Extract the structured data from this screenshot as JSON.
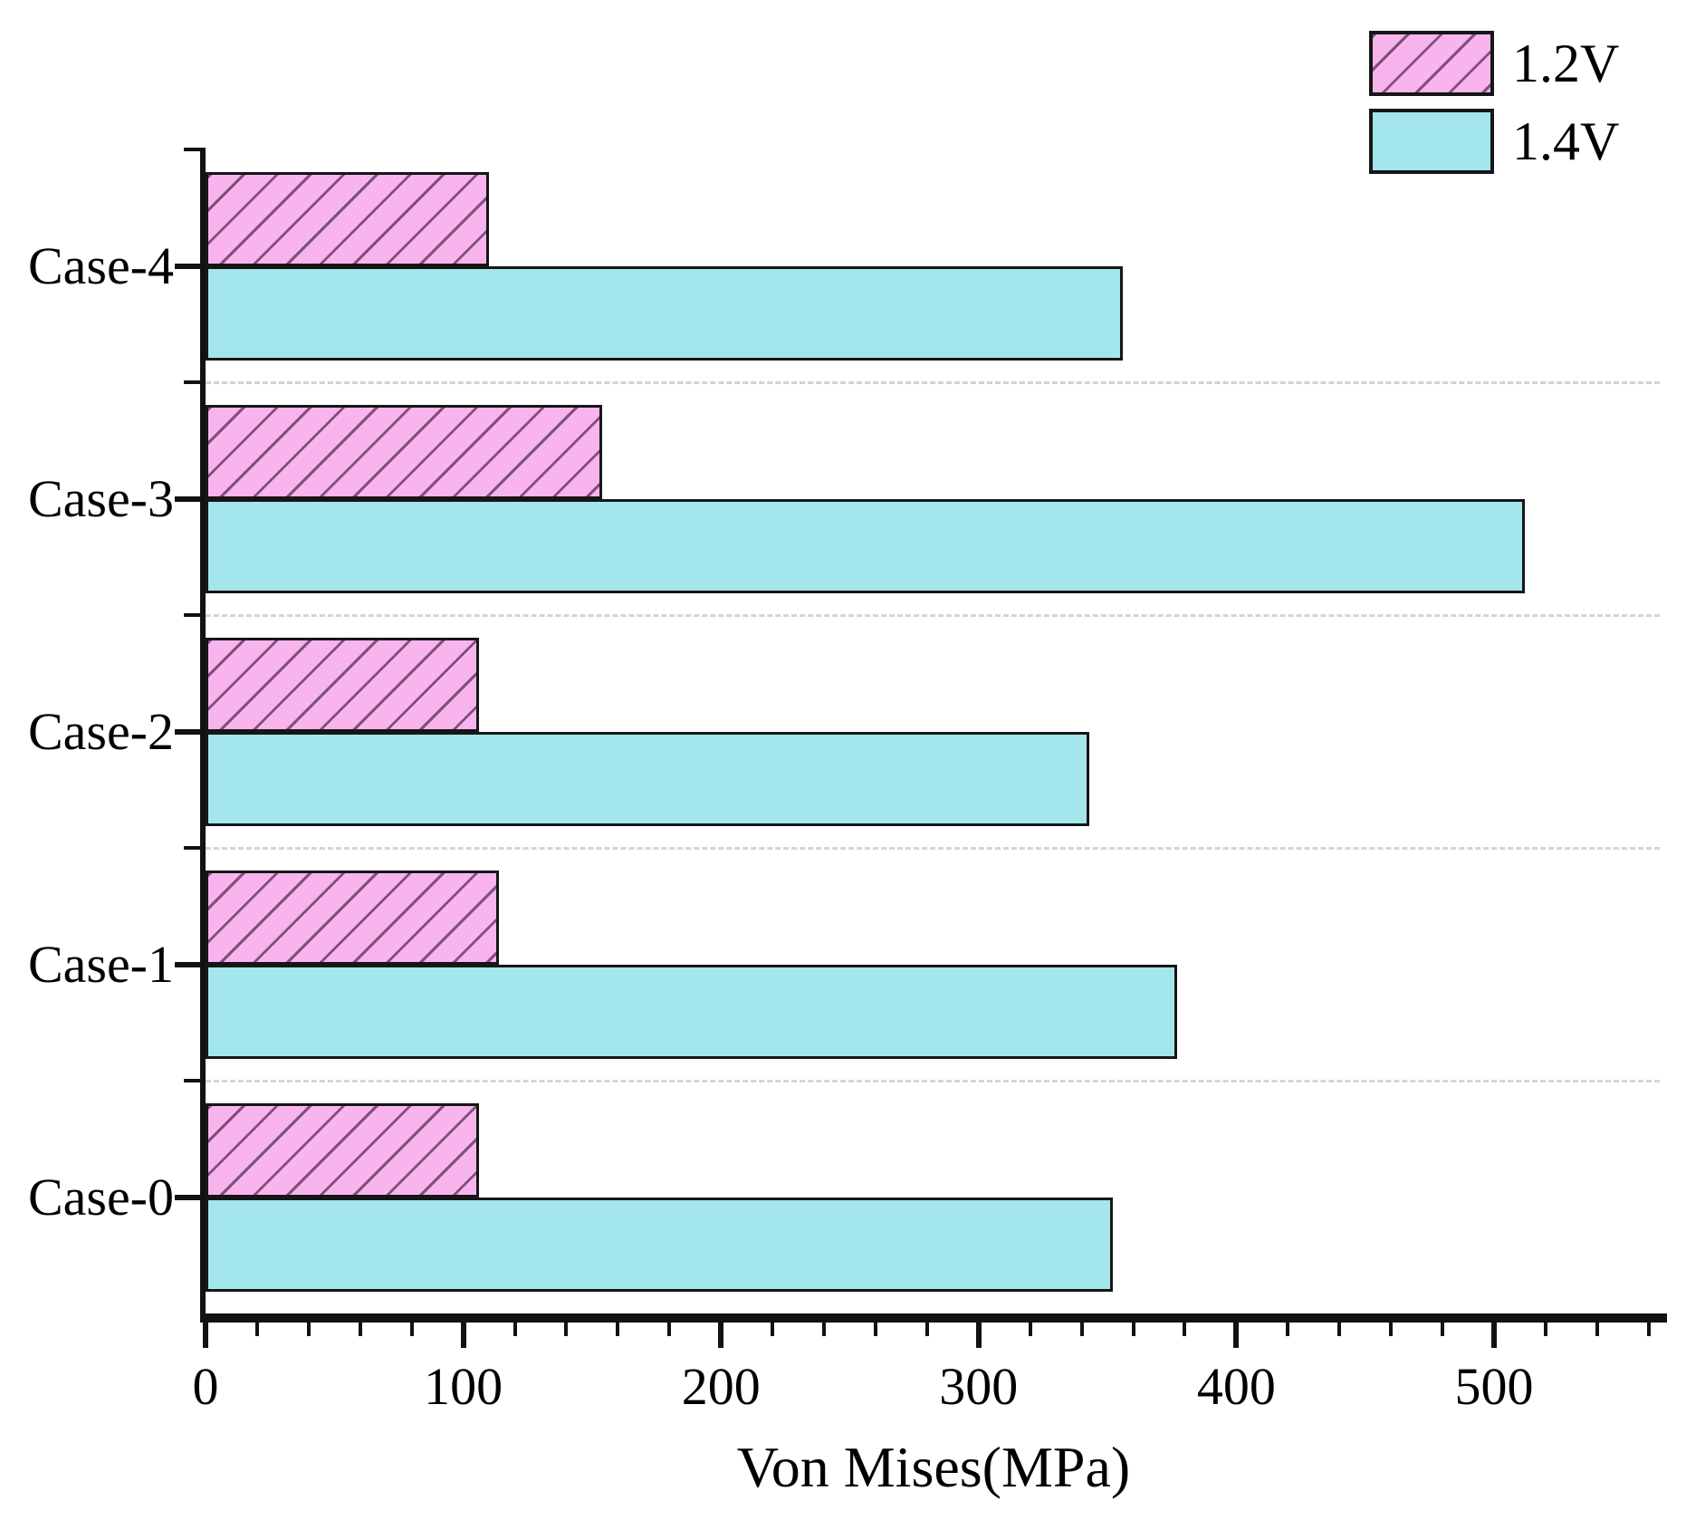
{
  "chart_data": {
    "type": "bar",
    "orientation": "horizontal",
    "title": "",
    "xlabel": "Von Mises(MPa)",
    "ylabel": "",
    "xlim": [
      0,
      565
    ],
    "x_major_ticks": [
      0,
      100,
      200,
      300,
      400,
      500
    ],
    "x_minor_step": 20,
    "grid": {
      "style": "dashed",
      "color": "#d4d4d4",
      "between_groups": true
    },
    "axis_color": "#121212",
    "categories": [
      "Case-4",
      "Case-3",
      "Case-2",
      "Case-1",
      "Case-0"
    ],
    "series": [
      {
        "name": "1.2V",
        "fill": "#f9b4ee",
        "pattern": "diagonal-lines",
        "hatch": "#7d527a",
        "values": [
          110,
          154,
          106,
          114,
          106
        ]
      },
      {
        "name": "1.4V",
        "fill": "#a3e6ec",
        "pattern": "solid",
        "hatch": null,
        "values": [
          356,
          512,
          343,
          377,
          352
        ]
      }
    ],
    "legend": {
      "position": "top-right",
      "entries": [
        "1.2V",
        "1.4V"
      ]
    }
  }
}
